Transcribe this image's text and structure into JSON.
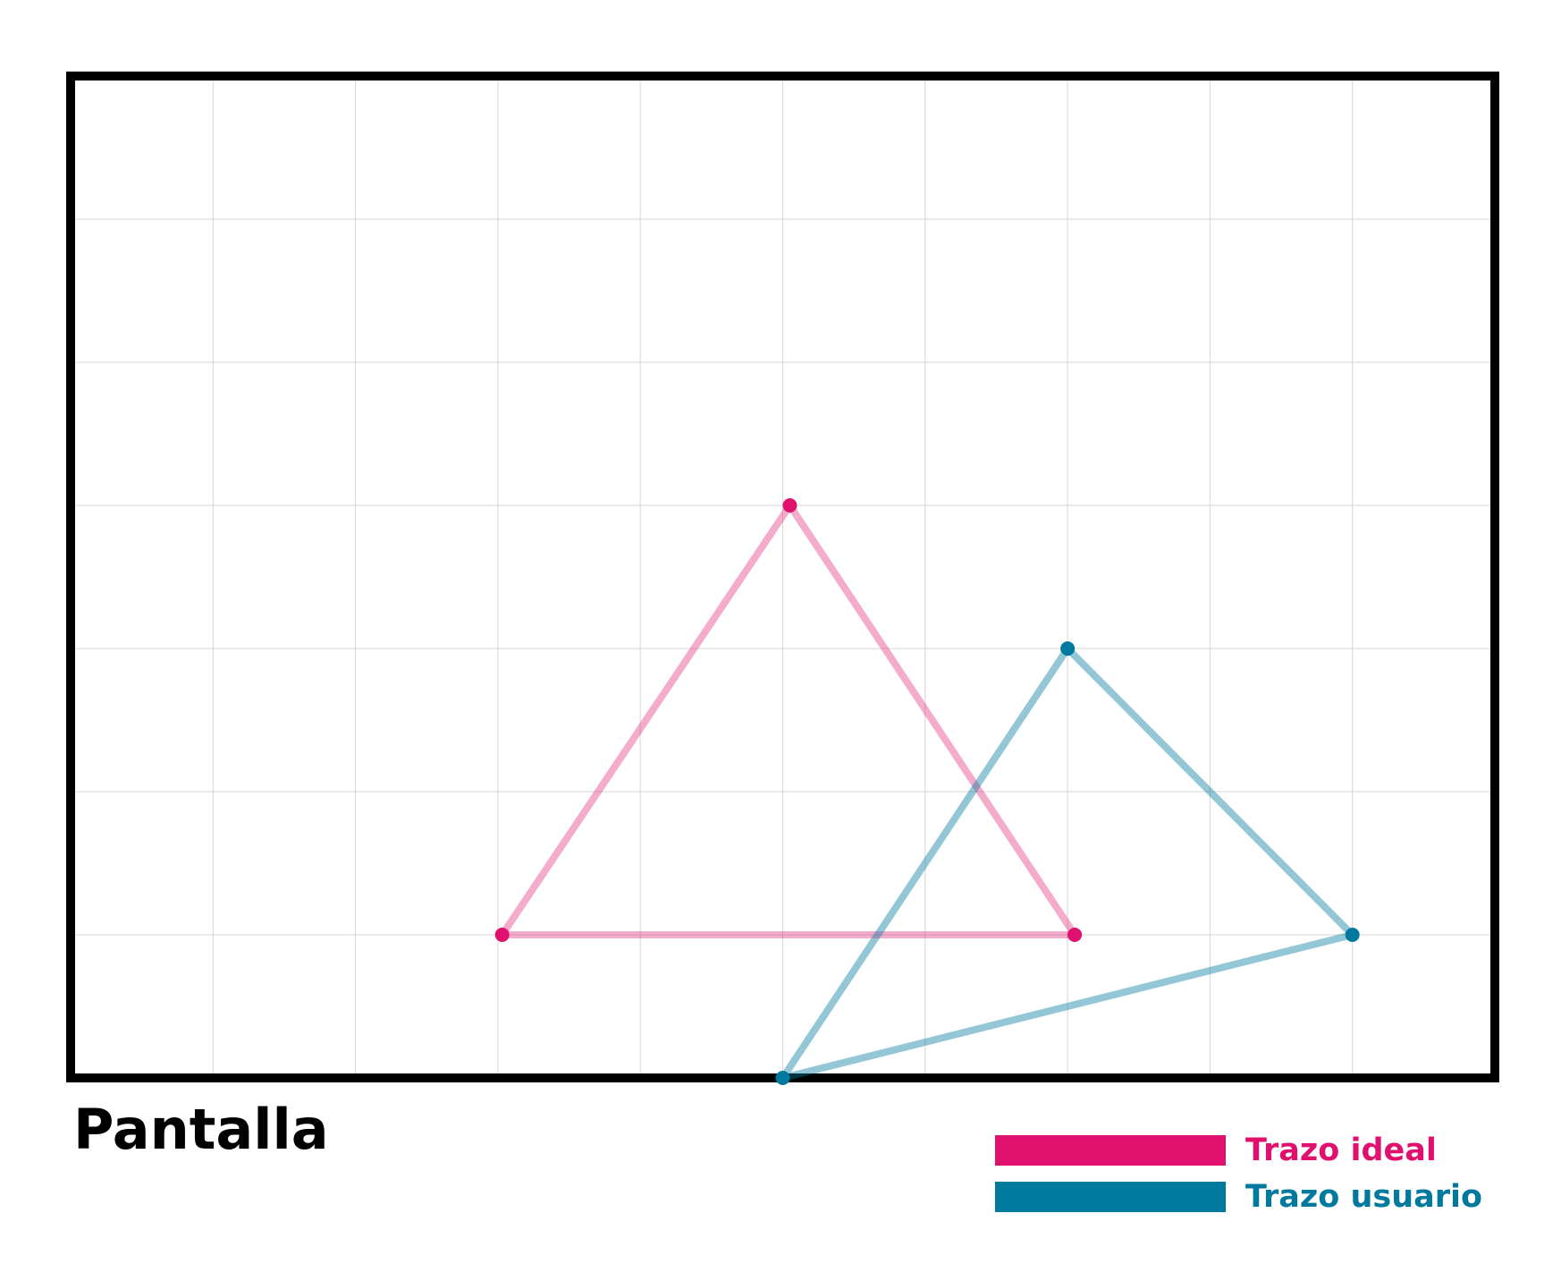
{
  "screen": {
    "label": "Pantalla",
    "grid": true,
    "columns": 10,
    "rows": 7
  },
  "legend": {
    "items": [
      {
        "label": "Trazo ideal",
        "color": "#e0106f"
      },
      {
        "label": "Trazo usuario",
        "color": "#00799e"
      }
    ]
  },
  "strokes": {
    "ideal": {
      "color": "#e0106f",
      "points": [
        [
          5.05,
          3.0
        ],
        [
          3.03,
          6.0
        ],
        [
          7.05,
          6.0
        ]
      ]
    },
    "user": {
      "color": "#00799e",
      "points": [
        [
          7.0,
          4.0
        ],
        [
          5.0,
          7.0
        ],
        [
          9.0,
          6.0
        ]
      ]
    }
  }
}
